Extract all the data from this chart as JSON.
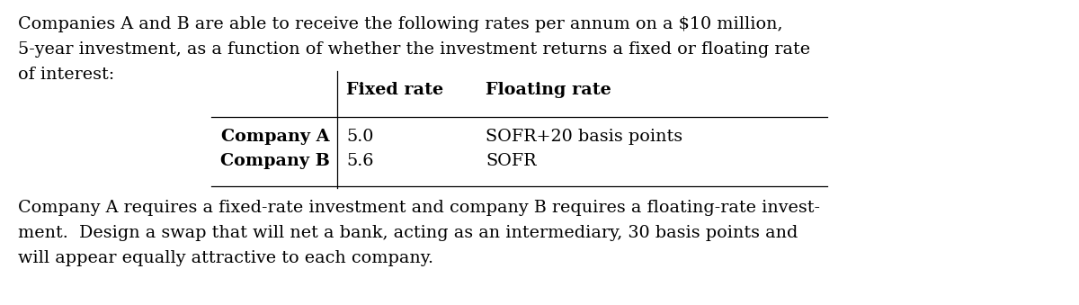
{
  "bg_color": "#ffffff",
  "text_color": "#000000",
  "intro_text_lines": [
    "Companies A and B are able to receive the following rates per annum on a $10 million,",
    "5-year investment, as a function of whether the investment returns a fixed or floating rate",
    "of interest:"
  ],
  "col_headers": [
    "Fixed rate",
    "Floating rate"
  ],
  "row_labels": [
    "Company A",
    "Company B"
  ],
  "fixed_rates": [
    "5.0",
    "5.6"
  ],
  "floating_rates": [
    "SOFR+20 basis points",
    "SOFR"
  ],
  "conclusion_text_lines": [
    "Company A requires a fixed-rate investment and company B requires a floating-rate invest-",
    "ment.  Design a swap that will net a bank, acting as an intermediary, 30 basis points and",
    "will appear equally attractive to each company."
  ],
  "font_size": 13.8,
  "fig_width": 12.0,
  "fig_height": 3.39,
  "dpi": 100
}
